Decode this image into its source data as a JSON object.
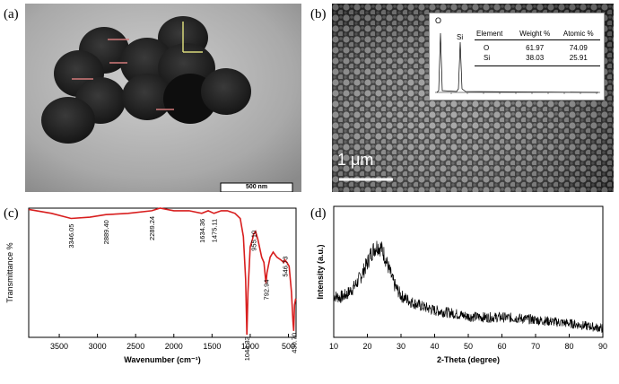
{
  "panels": {
    "a": {
      "label": "(a)",
      "scale_bar": "500 nm"
    },
    "b": {
      "label": "(b)",
      "scale_bar": "1 μm",
      "inset": {
        "peak_labels": [
          "O",
          "Si"
        ],
        "table": {
          "headers": [
            "Element",
            "Weight %",
            "Atomic %"
          ],
          "rows": [
            [
              "O",
              "61.97",
              "74.09"
            ],
            [
              "Si",
              "38.03",
              "25.91"
            ]
          ]
        }
      }
    },
    "c": {
      "label": "(c)"
    },
    "d": {
      "label": "(d)"
    }
  },
  "chart_data": [
    {
      "type": "line",
      "panel": "c",
      "title": "",
      "xlabel": "Wavenumber (cm⁻¹)",
      "ylabel": "Transmittance %",
      "xlim": [
        3900,
        400
      ],
      "xticks": [
        3500,
        3000,
        2500,
        2000,
        1500,
        1000,
        500
      ],
      "ylim": [
        0,
        100
      ],
      "series": [
        {
          "color": "#d81e1e",
          "x": [
            3900,
            3600,
            3346,
            3100,
            2889,
            2600,
            2289,
            2180,
            2000,
            1800,
            1634,
            1550,
            1475,
            1380,
            1300,
            1200,
            1130,
            1090,
            1060,
            1044,
            1030,
            1000,
            970,
            955,
            930,
            900,
            850,
            820,
            800,
            793,
            780,
            740,
            700,
            650,
            600,
            560,
            547,
            520,
            490,
            460,
            440,
            431,
            420,
            405
          ],
          "y": [
            99,
            96,
            92,
            93,
            95,
            96,
            98,
            100,
            98,
            98,
            96,
            98,
            96,
            98,
            98,
            96,
            92,
            78,
            45,
            2,
            35,
            70,
            76,
            80,
            82,
            76,
            62,
            58,
            46,
            42,
            50,
            62,
            66,
            62,
            60,
            58,
            60,
            58,
            55,
            35,
            12,
            5,
            25,
            30
          ]
        }
      ],
      "annotations": [
        {
          "x": 3346,
          "text": "3346.05"
        },
        {
          "x": 2889,
          "text": "2889.40"
        },
        {
          "x": 2289,
          "text": "2289.24"
        },
        {
          "x": 1634,
          "text": "1634.36"
        },
        {
          "x": 1475,
          "text": "1475.11"
        },
        {
          "x": 1044,
          "text": "1044.33"
        },
        {
          "x": 955,
          "text": "955.10"
        },
        {
          "x": 793,
          "text": "792.94"
        },
        {
          "x": 547,
          "text": "546.73"
        },
        {
          "x": 431,
          "text": "430.70"
        }
      ]
    },
    {
      "type": "line",
      "panel": "d",
      "title": "",
      "xlabel": "2-Theta (degree)",
      "ylabel": "Intensity (a.u.)",
      "xlim": [
        10,
        90
      ],
      "xticks": [
        10,
        20,
        30,
        40,
        50,
        60,
        70,
        80,
        90
      ],
      "series": [
        {
          "color": "#000000",
          "x": [
            10,
            12,
            14,
            16,
            18,
            20,
            21,
            22,
            23,
            24,
            25,
            26,
            27,
            28,
            30,
            33,
            36,
            40,
            45,
            50,
            55,
            60,
            65,
            70,
            75,
            80,
            85,
            90
          ],
          "y": [
            0.42,
            0.4,
            0.44,
            0.52,
            0.64,
            0.8,
            0.9,
            0.97,
            1.0,
            0.98,
            0.9,
            0.78,
            0.66,
            0.55,
            0.42,
            0.35,
            0.3,
            0.25,
            0.22,
            0.18,
            0.17,
            0.17,
            0.16,
            0.14,
            0.12,
            0.1,
            0.07,
            0.04
          ]
        }
      ]
    }
  ]
}
